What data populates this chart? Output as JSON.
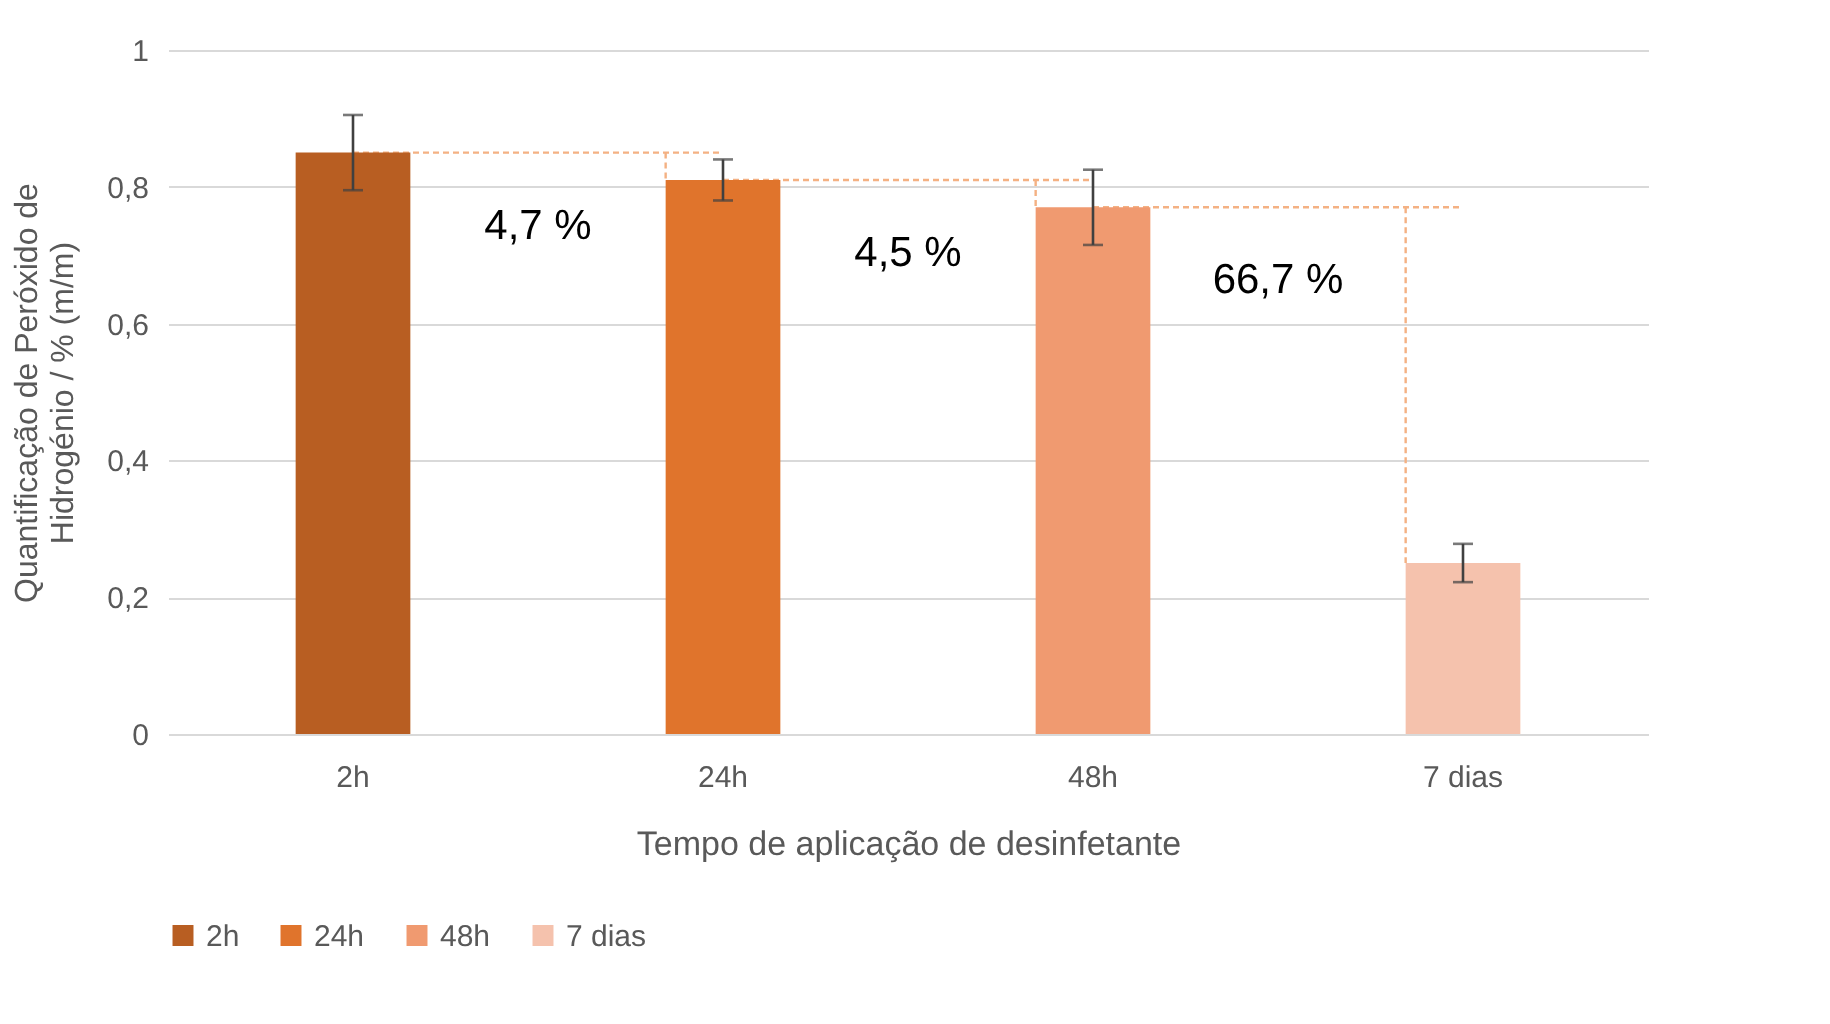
{
  "chart_data": {
    "type": "bar",
    "xlabel": "Tempo de aplicação de desinfetante",
    "ylabel": "Quantificação de Peróxido de Hidrogénio / % (m/m)",
    "categories": [
      "2h",
      "24h",
      "48h",
      "7 dias"
    ],
    "series": [
      {
        "name": "2h",
        "color": "#b85e22",
        "values": [
          0.85,
          null,
          null,
          null
        ],
        "errors": [
          0.055,
          null,
          null,
          null
        ]
      },
      {
        "name": "24h",
        "color": "#e0742c",
        "values": [
          null,
          0.81,
          null,
          null
        ],
        "errors": [
          null,
          0.03,
          null,
          null
        ]
      },
      {
        "name": "48h",
        "color": "#f09a70",
        "values": [
          null,
          null,
          0.77,
          null
        ],
        "errors": [
          null,
          null,
          0.055,
          null
        ]
      },
      {
        "name": "7 dias",
        "color": "#f5c2ad",
        "values": [
          null,
          null,
          null,
          0.25
        ],
        "errors": [
          null,
          null,
          null,
          0.028
        ]
      }
    ],
    "ylim": [
      0,
      1
    ],
    "yticks": [
      0,
      {
        "value": 0.2,
        "label": "0,2"
      },
      {
        "value": 0.4,
        "label": "0,4"
      },
      {
        "value": 0.6,
        "label": "0,6"
      },
      {
        "value": 0.8,
        "label": "0,8"
      },
      1
    ],
    "grid": "y",
    "legend": "bottom",
    "annotations": [
      "4,7 %",
      "4,5 %",
      "66,7 %"
    ]
  }
}
